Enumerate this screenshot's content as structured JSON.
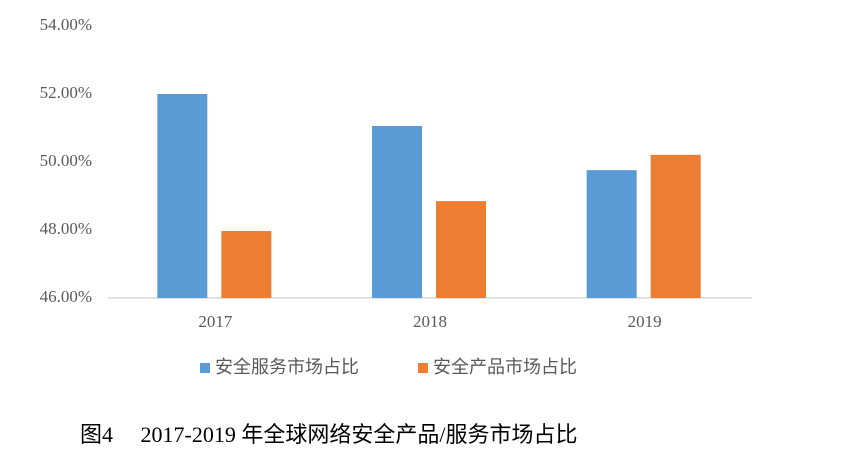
{
  "chart_data": {
    "type": "bar",
    "categories": [
      "2017",
      "2018",
      "2019"
    ],
    "series": [
      {
        "name": "安全服务市场占比",
        "color": "#5b9bd5",
        "values": [
          52.0,
          51.06,
          49.76
        ]
      },
      {
        "name": "安全产品市场占比",
        "color": "#ed7d31",
        "values": [
          47.97,
          48.85,
          50.21
        ]
      }
    ],
    "ylim": [
      46,
      54
    ],
    "yticks": [
      {
        "value": 46,
        "label": "46.00%"
      },
      {
        "value": 48,
        "label": "48.00%"
      },
      {
        "value": 50,
        "label": "50.00%"
      },
      {
        "value": 52,
        "label": "52.00%"
      },
      {
        "value": 54,
        "label": "54.00%"
      }
    ],
    "grid": false,
    "legend": "bottom",
    "caption": "图4　 2017-2019 年全球网络安全产品/服务市场占比"
  }
}
